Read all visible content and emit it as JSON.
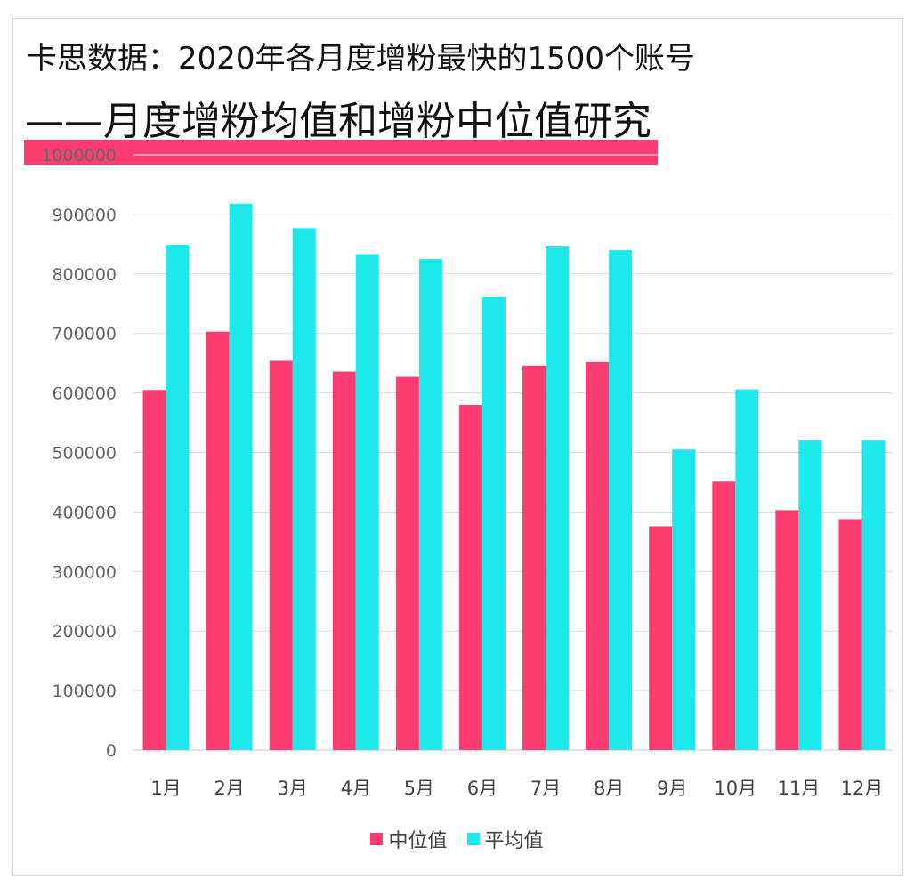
{
  "title_line1": "卡思数据：2020年各月度增粉最快的1500个账号",
  "title_line2": "——月度增粉均值和增粉中位值研究",
  "colors": {
    "median": "#ff3c72",
    "mean": "#1de9ea",
    "grid": "#d9d9d9",
    "accent": "#ff3c72"
  },
  "chart_data": {
    "type": "bar",
    "categories": [
      "1月",
      "2月",
      "3月",
      "4月",
      "5月",
      "6月",
      "7月",
      "8月",
      "9月",
      "10月",
      "11月",
      "12月"
    ],
    "series": [
      {
        "name": "中位值",
        "values": [
          605000,
          703000,
          654000,
          636000,
          627000,
          580000,
          646000,
          652000,
          376000,
          451000,
          403000,
          388000
        ]
      },
      {
        "name": "平均值",
        "values": [
          849000,
          918000,
          877000,
          832000,
          825000,
          761000,
          846000,
          840000,
          505000,
          606000,
          520000,
          520000
        ]
      }
    ],
    "yticks": [
      "0",
      "100000",
      "200000",
      "300000",
      "400000",
      "500000",
      "600000",
      "700000",
      "800000",
      "900000",
      "1000000"
    ],
    "ylim": [
      0,
      1000000
    ],
    "grid": true,
    "legend_position": "bottom"
  }
}
